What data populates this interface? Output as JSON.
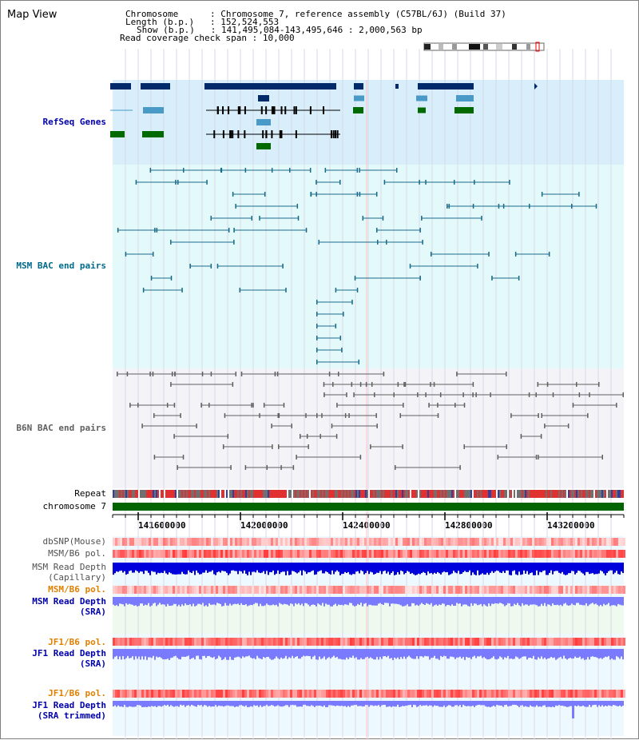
{
  "window": {
    "title": "Map View"
  },
  "info": {
    "chromosome_key": "Chromosome",
    "chromosome_value": "Chromosome 7, reference assembly (C57BL/6J) (Build 37)",
    "length_key": "Length (b.p.)",
    "length_value": "152,524,553",
    "show_key": "Show (b.p.)",
    "show_value": "141,495,084-143,495,646 : 2,000,563 bp",
    "coverage_key": "Read coverage check span",
    "coverage_value": "10,000"
  },
  "tracks": {
    "refseq": {
      "label": "RefSeq Genes",
      "color": "#0000aa"
    },
    "msm_bac": {
      "label": "MSM BAC end pairs",
      "color": "#006a8a"
    },
    "b6n_bac": {
      "label": "B6N BAC end pairs",
      "color": "#606060"
    },
    "repeat": {
      "label": "Repeat"
    },
    "chromosome": {
      "label": "chromosome 7"
    },
    "dbsnp": {
      "label": "dbSNP(Mouse)"
    },
    "msm_b6_pol_1": {
      "label": "MSM/B6 pol."
    },
    "msm_read_depth_cap": {
      "label_1": "MSM Read Depth",
      "label_2": "(Capillary)"
    },
    "msm_b6_pol_2": {
      "label": "MSM/B6 pol.",
      "color": "#e08000"
    },
    "msm_read_depth_sra": {
      "label_1": "MSM Read Depth",
      "label_2": "(SRA)"
    },
    "jf1_b6_pol_1": {
      "label": "JF1/B6 pol.",
      "color": "#e08000"
    },
    "jf1_read_depth_sra": {
      "label_1": "JF1 Read Depth",
      "label_2": "(SRA)"
    },
    "jf1_b6_pol_2": {
      "label": "JF1/B6 pol.",
      "color": "#e08000"
    },
    "jf1_read_depth_trim": {
      "label_1": "JF1 Read Depth",
      "label_2": "(SRA trimmed)"
    }
  },
  "axis": {
    "ticks": [
      "141600000",
      "142000000",
      "142400000",
      "142800000",
      "143200000"
    ]
  },
  "colors": {
    "refseq_bg": "#d8eefa",
    "msm_bg": "#e4fafa",
    "b6n_bg": "#f4f4f8",
    "gene_dark": "#002a6a",
    "gene_light": "#4a9ac8",
    "gene_green": "#006a00",
    "chromosome_bar": "#006400",
    "depth_blue": "#0000dd",
    "depth_light": "#7a7aff",
    "pol_red": "#ff4040"
  }
}
